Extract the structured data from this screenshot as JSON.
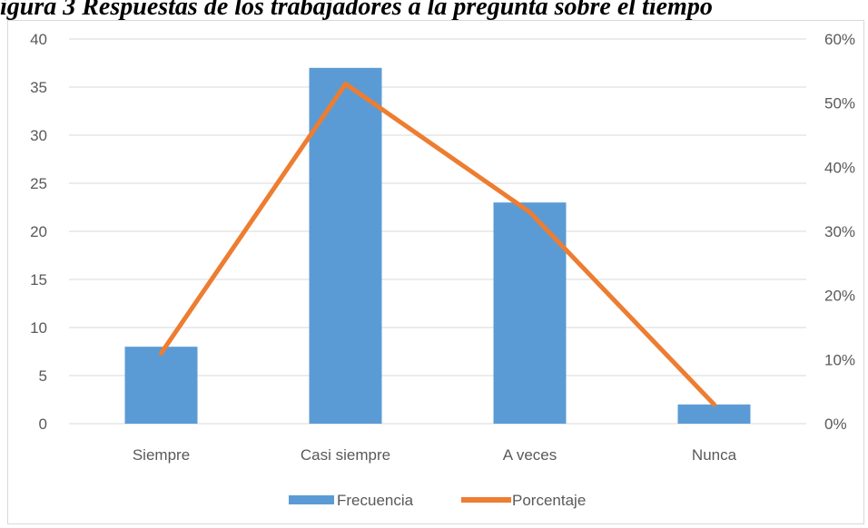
{
  "header": {
    "caption_fragment": "igura 3 Respuestas de los trabajadores a la pregunta sobre el tiempo"
  },
  "chart_data": {
    "type": "bar",
    "categories": [
      "Siempre",
      "Casi siempre",
      "A veces",
      "Nunca"
    ],
    "series": [
      {
        "name": "Frecuencia",
        "type": "bar",
        "axis": "left",
        "color": "#5b9bd5",
        "values": [
          8,
          37,
          23,
          2
        ]
      },
      {
        "name": "Porcentaje",
        "type": "line",
        "axis": "right",
        "color": "#ed7d31",
        "values": [
          0.11,
          0.53,
          0.33,
          0.03
        ]
      }
    ],
    "y_left": {
      "min": 0,
      "max": 40,
      "step": 5,
      "ticks": [
        "0",
        "5",
        "10",
        "15",
        "20",
        "25",
        "30",
        "35",
        "40"
      ]
    },
    "y_right": {
      "min": 0,
      "max": 0.6,
      "step": 0.1,
      "ticks": [
        "0%",
        "10%",
        "20%",
        "30%",
        "40%",
        "50%",
        "60%"
      ]
    },
    "grid": true,
    "legend_position": "bottom",
    "legend": [
      "Frecuencia",
      "Porcentaje"
    ]
  }
}
